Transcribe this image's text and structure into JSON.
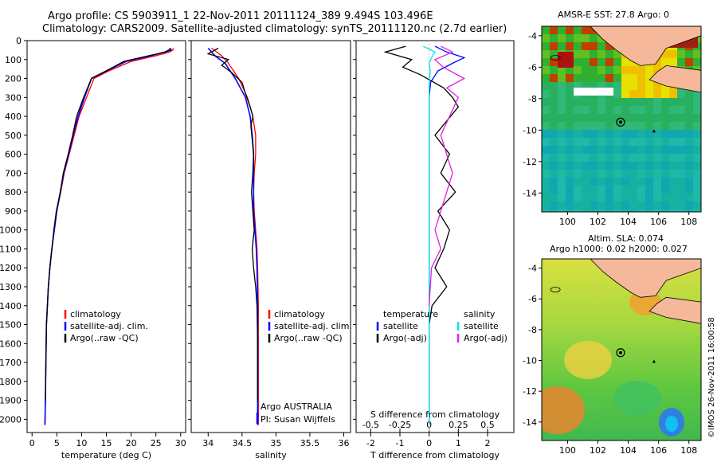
{
  "header": {
    "line1": "Argo profile: CS 5903911_1 22-Nov-2011 20111124_389 9.494S 103.496E",
    "line2": "Climatology: CARS2009. Satellite-adjusted climatology: synTS_20111120.nc (2.7d earlier)"
  },
  "colors": {
    "climatology": "#ff0000",
    "satellite": "#0000ff",
    "argo": "#000000",
    "s_satellite": "#00e5e5",
    "s_argo": "#e020e0"
  },
  "chart_data": [
    {
      "type": "line",
      "xlabel": "temperature (deg C)",
      "ylabel": "",
      "xlim": [
        -1,
        31
      ],
      "ylim": [
        2070,
        0
      ],
      "xticks": [
        "0",
        "5",
        "10",
        "15",
        "20",
        "25",
        "30"
      ],
      "yticks": [
        "0",
        "100",
        "200",
        "300",
        "400",
        "500",
        "600",
        "700",
        "800",
        "900",
        "1000",
        "1100",
        "1200",
        "1300",
        "1400",
        "1500",
        "1600",
        "1700",
        "1800",
        "1900",
        "2000"
      ],
      "legend": [
        "climatology",
        "satellite-adj. clim.",
        "Argo(..raw -QC)"
      ],
      "series": [
        {
          "name": "climatology",
          "x": [
            28.5,
            28.4,
            27.8,
            25.0,
            20.0,
            15.5,
            12.5,
            11.0,
            9.5,
            8.5,
            7.5,
            6.5,
            5.8,
            5.0,
            4.5,
            4.0,
            3.6,
            3.3,
            3.1,
            2.9,
            2.8,
            2.7,
            2.6
          ],
          "y": [
            40,
            50,
            60,
            80,
            110,
            160,
            200,
            300,
            400,
            500,
            600,
            700,
            800,
            900,
            1000,
            1100,
            1200,
            1300,
            1400,
            1500,
            1700,
            1900,
            2030
          ]
        },
        {
          "name": "satellite-adj. clim.",
          "x": [
            27.9,
            27.6,
            26.8,
            24.0,
            19.0,
            15.0,
            12.0,
            10.6,
            9.3,
            8.3,
            7.4,
            6.4,
            5.7,
            5.0,
            4.5,
            4.0,
            3.6,
            3.3,
            3.1,
            2.9,
            2.8,
            2.7,
            2.6
          ],
          "y": [
            40,
            50,
            60,
            80,
            110,
            160,
            200,
            300,
            400,
            500,
            600,
            700,
            800,
            900,
            1000,
            1100,
            1200,
            1300,
            1400,
            1500,
            1700,
            1900,
            2030
          ]
        },
        {
          "name": "Argo(..raw -QC)",
          "x": [
            28.0,
            28.1,
            27.0,
            23.5,
            18.5,
            15.0,
            12.0,
            10.4,
            9.0,
            8.2,
            7.3,
            6.3,
            5.7,
            4.9,
            4.4,
            4.0,
            3.6,
            3.3,
            3.1,
            2.9,
            2.8,
            2.7
          ],
          "y": [
            40,
            50,
            60,
            80,
            110,
            160,
            200,
            300,
            400,
            500,
            600,
            700,
            800,
            900,
            1000,
            1100,
            1200,
            1300,
            1400,
            1500,
            1700,
            1900
          ]
        }
      ]
    },
    {
      "type": "line",
      "xlabel": "salinity",
      "xlim": [
        33.75,
        36.1
      ],
      "ylim": [
        2070,
        0
      ],
      "xticks": [
        "34",
        "34.5",
        "35",
        "35.5",
        "36"
      ],
      "legend": [
        "climatology",
        "satellite-adj. clim.",
        "Argo(..raw -QC)"
      ],
      "note1": "Argo AUSTRALIA",
      "note2": "PI: Susan Wijffels",
      "series": [
        {
          "name": "climatology",
          "x": [
            34.05,
            34.2,
            34.3,
            34.45,
            34.58,
            34.66,
            34.7,
            34.7,
            34.68,
            34.67,
            34.68,
            34.7,
            34.72,
            34.73,
            34.74,
            34.74,
            34.74,
            34.74,
            34.74
          ],
          "y": [
            40,
            80,
            120,
            200,
            300,
            400,
            500,
            600,
            700,
            800,
            900,
            1000,
            1100,
            1200,
            1400,
            1600,
            1800,
            2000,
            2030
          ]
        },
        {
          "name": "satellite-adj. clim.",
          "x": [
            34.0,
            34.1,
            34.25,
            34.4,
            34.55,
            34.62,
            34.65,
            34.67,
            34.67,
            34.67,
            34.67,
            34.69,
            34.71,
            34.72,
            34.73,
            34.73,
            34.73,
            34.73,
            34.73
          ],
          "y": [
            40,
            80,
            120,
            200,
            300,
            400,
            500,
            600,
            700,
            800,
            900,
            1000,
            1100,
            1200,
            1400,
            1600,
            1800,
            2000,
            2030
          ]
        },
        {
          "name": "Argo(..raw -QC)",
          "x": [
            34.15,
            34.0,
            34.3,
            34.2,
            34.35,
            34.5,
            34.55,
            34.62,
            34.66,
            34.63,
            34.67,
            34.66,
            34.64,
            34.66,
            34.68,
            34.65,
            34.67,
            34.7,
            34.72,
            34.73,
            34.73,
            34.73
          ],
          "y": [
            40,
            70,
            100,
            130,
            170,
            220,
            280,
            350,
            400,
            450,
            600,
            700,
            800,
            900,
            1000,
            1100,
            1200,
            1300,
            1400,
            1600,
            1800,
            1900
          ]
        }
      ]
    },
    {
      "type": "line",
      "xlabel": "T difference from climatology",
      "x2label": "S difference from climatology",
      "xlim": [
        -2.5,
        2.9
      ],
      "x2lim": [
        -0.625,
        0.725
      ],
      "ylim": [
        2070,
        0
      ],
      "xticks": [
        "-2",
        "-1",
        "0",
        "1",
        "2"
      ],
      "x2ticks": [
        "-0.5",
        "-0.25",
        "0",
        "0.25",
        "0.5"
      ],
      "legend_titles": [
        "temperature",
        "salinity"
      ],
      "legend": [
        "satellite",
        "Argo(-adj)",
        "satellite",
        "Argo(-adj)"
      ],
      "series": [
        {
          "name": "satellite",
          "x": [
            0.2,
            0.6,
            1.2,
            0.8,
            0.3,
            0.05,
            0.0,
            0.0,
            0.0,
            0.0,
            0.0,
            0.0
          ],
          "y": [
            30,
            60,
            90,
            120,
            160,
            220,
            300,
            500,
            800,
            1200,
            1600,
            2030
          ]
        },
        {
          "name": "Argo(-adj)",
          "x": [
            -0.8,
            -1.5,
            -0.6,
            -0.9,
            -0.3,
            0.5,
            0.8,
            1.0,
            0.2,
            0.7,
            0.4,
            0.9,
            0.3,
            0.7,
            0.5,
            0.2,
            0.6,
            0.1,
            0.0
          ],
          "y": [
            30,
            60,
            100,
            140,
            180,
            250,
            300,
            350,
            500,
            600,
            700,
            800,
            900,
            1000,
            1100,
            1200,
            1300,
            1400,
            1500
          ]
        },
        {
          "name": "satellite",
          "x": [
            -0.05,
            0.05,
            0.02,
            0.0,
            0.01,
            0.0,
            0.0,
            0.0,
            0.0,
            0.0,
            0.0,
            0.0
          ],
          "y": [
            30,
            60,
            90,
            120,
            160,
            220,
            300,
            500,
            800,
            1200,
            1600,
            2030
          ]
        },
        {
          "name": "Argo(-adj)",
          "x": [
            0.1,
            0.2,
            0.05,
            0.12,
            0.3,
            0.15,
            0.25,
            0.1,
            0.2,
            0.15,
            0.05,
            0.1,
            0.02,
            0.0
          ],
          "y": [
            30,
            60,
            100,
            140,
            200,
            250,
            300,
            500,
            700,
            800,
            1000,
            1100,
            1200,
            1400
          ]
        }
      ]
    },
    {
      "type": "heatmap",
      "title": "AMSR-E SST: 27.8 Argo: 0",
      "xticks": [
        "100",
        "102",
        "104",
        "106",
        "108"
      ],
      "yticks": [
        "-4",
        "-6",
        "-8",
        "-10",
        "-12",
        "-14"
      ],
      "xlim": [
        98.3,
        108.8
      ],
      "ylim": [
        -15.2,
        -3.4
      ]
    },
    {
      "type": "heatmap",
      "title_line1": "Altim. SLA: 0.074",
      "title_line2": "Argo h1000: 0.02 h2000: 0.027",
      "xticks": [
        "100",
        "102",
        "104",
        "106",
        "108"
      ],
      "yticks": [
        "-4",
        "-6",
        "-8",
        "-10",
        "-12",
        "-14"
      ],
      "xlim": [
        98.3,
        108.8
      ],
      "ylim": [
        -15.2,
        -3.4
      ]
    }
  ],
  "credit": "©IMOS 26-Nov-2011 16:00:58"
}
